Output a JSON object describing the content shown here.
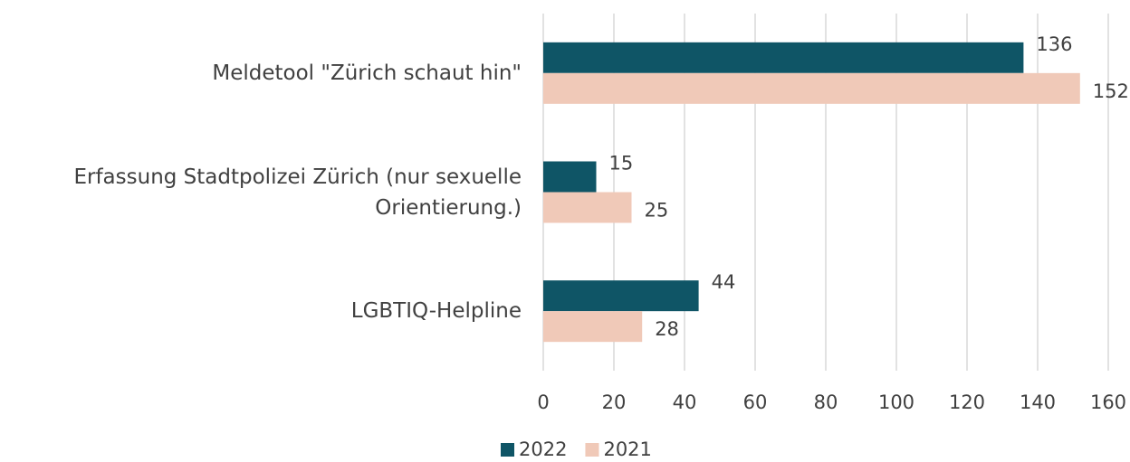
{
  "chart_data": {
    "type": "hbar",
    "categories": [
      "Meldetool \"Zürich schaut hin\"",
      "Erfassung Stadtpolizei Zürich (nur sexuelle Orientierung.)",
      "LGBTIQ-Helpline"
    ],
    "series": [
      {
        "name": "2022",
        "color": "#0f5566",
        "values": [
          136,
          15,
          44
        ]
      },
      {
        "name": "2021",
        "color": "#f0c9b8",
        "values": [
          152,
          25,
          28
        ]
      }
    ],
    "xlim": [
      0,
      160
    ],
    "xticks": [
      0,
      20,
      40,
      60,
      80,
      100,
      120,
      140,
      160
    ],
    "grid": true,
    "legend": "bottom"
  }
}
